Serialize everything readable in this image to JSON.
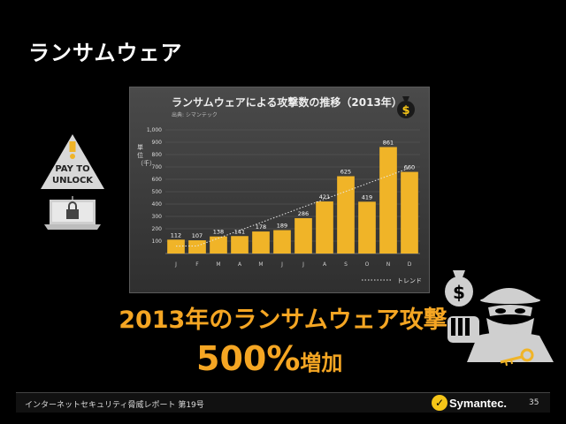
{
  "slide": {
    "title": "ランサムウェア",
    "headline": "2013年のランサムウェア攻撃",
    "increase_value": "500%",
    "increase_suffix": "増加"
  },
  "pay_sign": {
    "line1": "PAY TO",
    "line2": "UNLOCK"
  },
  "footer": {
    "text": "インターネットセキュリティ脅威レポート 第19号",
    "brand": "Symantec.",
    "page_number": "35"
  },
  "colors": {
    "accent": "#f5a623",
    "bar": "#f0b428",
    "background": "#000000",
    "panel": "#3c3c3c"
  },
  "icons": [
    "money-bag-icon",
    "warning-triangle-icon",
    "laptop-lock-icon",
    "thief-icon",
    "key-icon",
    "symantec-check-icon"
  ],
  "chart_data": {
    "type": "bar",
    "title": "ランサムウェアによる攻撃数の推移（2013年）",
    "source": "出典: シマンテック",
    "ylabel": "単位（千）",
    "categories": [
      "J",
      "F",
      "M",
      "A",
      "M",
      "J",
      "J",
      "A",
      "S",
      "O",
      "N",
      "D"
    ],
    "values": [
      112,
      107,
      138,
      141,
      178,
      189,
      286,
      421,
      625,
      419,
      861,
      660
    ],
    "ylim": [
      0,
      1000
    ],
    "yticks": [
      "100",
      "200",
      "300",
      "400",
      "500",
      "600",
      "700",
      "800",
      "900",
      "1,000"
    ],
    "legend": "トレンド",
    "trend": true,
    "grid": true
  }
}
